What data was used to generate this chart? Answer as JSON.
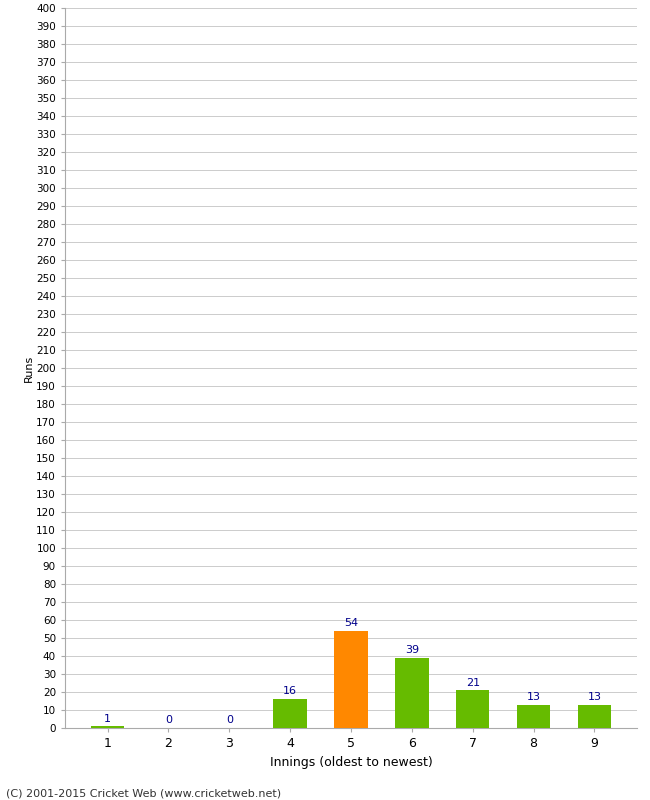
{
  "xlabel": "Innings (oldest to newest)",
  "ylabel": "Runs",
  "categories": [
    "1",
    "2",
    "3",
    "4",
    "5",
    "6",
    "7",
    "8",
    "9"
  ],
  "values": [
    1,
    0,
    0,
    16,
    54,
    39,
    21,
    13,
    13
  ],
  "bar_colors": [
    "#66bb00",
    "#66bb00",
    "#66bb00",
    "#66bb00",
    "#ff8800",
    "#66bb00",
    "#66bb00",
    "#66bb00",
    "#66bb00"
  ],
  "ylim": [
    0,
    400
  ],
  "ytick_step": 10,
  "label_color": "#00008b",
  "background_color": "#ffffff",
  "grid_color": "#cccccc",
  "footer": "(C) 2001-2015 Cricket Web (www.cricketweb.net)",
  "bar_width": 0.55
}
